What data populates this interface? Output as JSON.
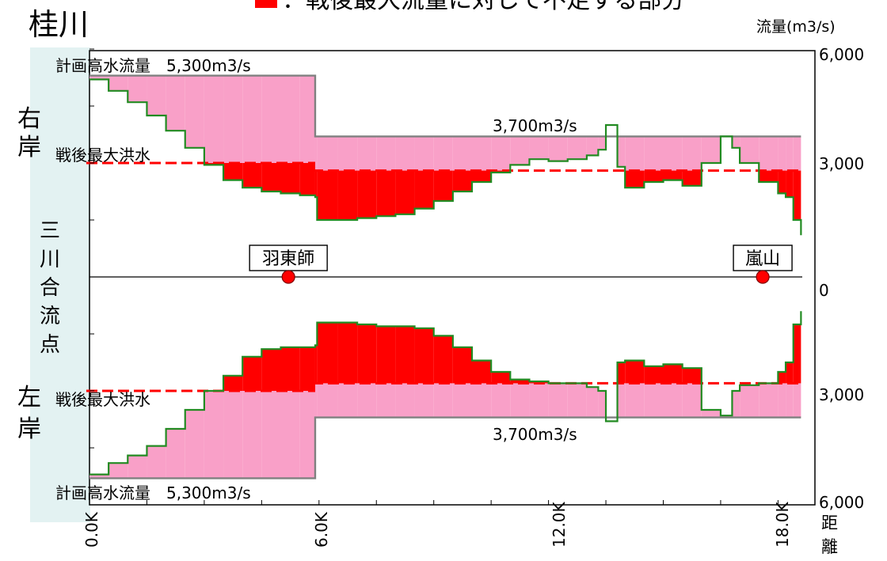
{
  "title": "桂川",
  "legend": {
    "text": "：戦後最大流量に対して不足する部分",
    "color": "#ff0000"
  },
  "side_labels": {
    "right_bank": "右\n岸",
    "confluence": "三\n川\n合\n流\n点",
    "left_bank": "左\n岸"
  },
  "stations": [
    {
      "name": "羽東師",
      "km": 5.2
    },
    {
      "name": "嵐山",
      "km": 17.6
    }
  ],
  "annotations": {
    "plan_flow_right": "計画高水流量　5,300m3/s",
    "plan_flow_left": "計画高水流量　5,300m3/s",
    "postwar_max_right": "戦後最大洪水",
    "postwar_max_left": "戦後最大洪水",
    "flow_3700_right": "3,700m3/s",
    "flow_3700_left": "3,700m3/s"
  },
  "colors": {
    "deficit": "#ff0000",
    "capacity_fill": "#f9a0c8",
    "capacity_line": "#228b22",
    "plan_line": "#808080",
    "postwar_line": "#ff0000",
    "side_panel": "#e3f2f2"
  },
  "chart_data": {
    "type": "area",
    "title": "桂川",
    "ylabel": "流量(m3/s)",
    "xlabel": "距離",
    "x_unit": "km",
    "xlim": [
      0,
      18.6
    ],
    "ylim": [
      0,
      6000
    ],
    "x_ticks": [
      "0.0K",
      "6.0K",
      "12.0K",
      "18.0K"
    ],
    "x_tick_values": [
      0,
      6,
      12,
      18
    ],
    "y_ticks_right_bank": [
      "6,000",
      "3,000"
    ],
    "y_ticks_center": [
      "0"
    ],
    "y_ticks_left_bank": [
      "3,000",
      "6,000"
    ],
    "legend_label": "：戦後最大流量に対して不足する部分",
    "plan_flow": {
      "label": "計画高水流量",
      "segments": [
        {
          "x": [
            0,
            5.9
          ],
          "value": 5300
        },
        {
          "x": [
            5.9,
            18.6
          ],
          "value": 3700
        }
      ]
    },
    "postwar_max_flow": {
      "label": "戦後最大洪水",
      "segments": [
        {
          "x": [
            0,
            5.9
          ],
          "value": 3000
        },
        {
          "x": [
            5.9,
            18.6
          ],
          "value": 2800
        }
      ]
    },
    "series": [
      {
        "name": "右岸",
        "x": [
          0,
          0.5,
          1,
          1.5,
          2,
          2.5,
          3,
          3.5,
          4,
          4.5,
          5,
          5.5,
          5.9,
          5.95,
          6.5,
          7,
          7.5,
          8,
          8.5,
          9,
          9.5,
          10,
          10.5,
          11,
          11.5,
          12,
          12.5,
          13,
          13.3,
          13.5,
          13.8,
          14,
          14.5,
          15,
          15.5,
          16,
          16.5,
          16.8,
          17,
          17.5,
          18,
          18.2,
          18.4,
          18.6
        ],
        "values": [
          5200,
          4900,
          4600,
          4250,
          3850,
          3400,
          2950,
          2550,
          2350,
          2250,
          2200,
          2150,
          2100,
          1500,
          1500,
          1550,
          1600,
          1650,
          1800,
          2000,
          2250,
          2500,
          2750,
          2950,
          3100,
          3050,
          3100,
          3200,
          3350,
          4000,
          2900,
          2350,
          2500,
          2550,
          2400,
          3000,
          3700,
          3400,
          3000,
          2500,
          2200,
          2100,
          1500,
          1100
        ]
      },
      {
        "name": "左岸",
        "x": [
          0,
          0.5,
          1,
          1.5,
          2,
          2.5,
          3,
          3.5,
          4,
          4.5,
          5,
          5.5,
          5.9,
          5.95,
          6.5,
          7,
          7.5,
          8,
          8.5,
          9,
          9.5,
          10,
          10.5,
          11,
          11.5,
          12,
          12.5,
          13,
          13.3,
          13.5,
          13.8,
          14,
          14.5,
          15,
          15.5,
          16,
          16.5,
          16.8,
          17,
          17.5,
          18,
          18.2,
          18.4,
          18.6
        ],
        "values": [
          5200,
          4900,
          4700,
          4450,
          4000,
          3500,
          3000,
          2600,
          2100,
          1900,
          1850,
          1850,
          1800,
          1200,
          1200,
          1250,
          1300,
          1300,
          1350,
          1550,
          1850,
          2200,
          2500,
          2700,
          2750,
          2800,
          2800,
          2900,
          3000,
          3800,
          2250,
          2200,
          2350,
          2300,
          2400,
          3500,
          3650,
          3000,
          2850,
          2800,
          2500,
          2250,
          1250,
          900
        ]
      }
    ]
  }
}
